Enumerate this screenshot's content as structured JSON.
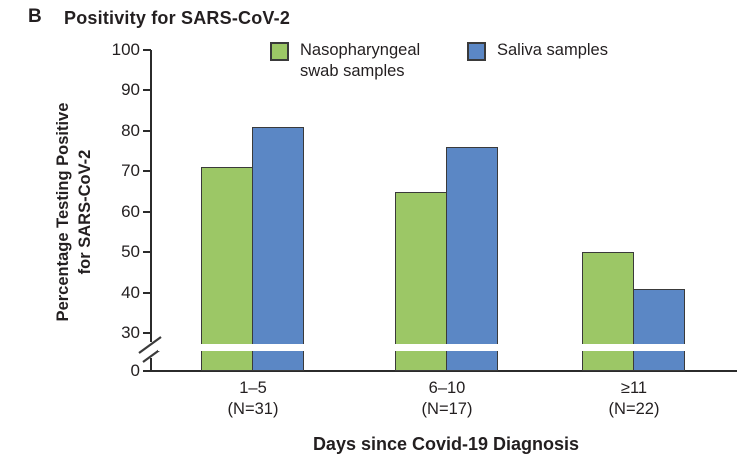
{
  "panel": {
    "letter": "B",
    "title": "Positivity for SARS-CoV-2"
  },
  "legend": {
    "items": [
      {
        "label_lines": [
          "Nasopharyngeal",
          "swab samples"
        ],
        "color": "#9CC766"
      },
      {
        "label_lines": [
          "Saliva samples"
        ],
        "color": "#5B87C5"
      }
    ]
  },
  "colors": {
    "nasopharyngeal_green": "#9CC766",
    "saliva_blue": "#5B87C5",
    "bar_border": "#3A3A3A",
    "axis": "#2B2B2B",
    "text": "#231F20"
  },
  "y_axis": {
    "title_lines": [
      "Percentage Testing Positive",
      "for SARS-CoV-2"
    ]
  },
  "x_axis": {
    "title": "Days since Covid-19 Diagnosis"
  },
  "chart_data": {
    "type": "bar",
    "title": "Positivity for SARS-CoV-2",
    "xlabel": "Days since Covid-19 Diagnosis",
    "ylabel": "Percentage Testing Positive for SARS-CoV-2",
    "categories": [
      {
        "label": "1–5",
        "n": "(N=31)"
      },
      {
        "label": "6–10",
        "n": "(N=17)"
      },
      {
        "label": "≥11",
        "n": "(N=22)"
      }
    ],
    "series": [
      {
        "name": "Nasopharyngeal swab samples",
        "color": "#9CC766",
        "values": [
          71,
          65,
          50
        ]
      },
      {
        "name": "Saliva samples",
        "color": "#5B87C5",
        "values": [
          81,
          76,
          41
        ]
      }
    ],
    "yticks": [
      0,
      30,
      40,
      50,
      60,
      70,
      80,
      90,
      100
    ],
    "ylim": [
      0,
      100
    ],
    "axis_break": {
      "between": [
        0,
        30
      ]
    },
    "grid": false,
    "legend_position": "top"
  }
}
